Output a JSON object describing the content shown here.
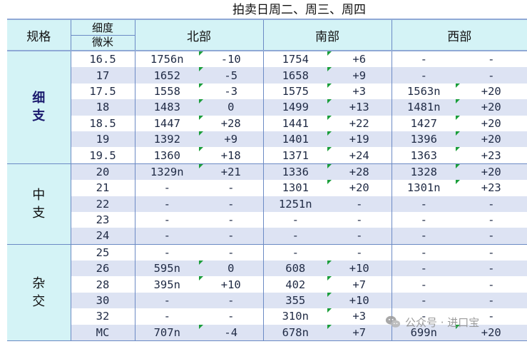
{
  "title": "拍卖日周二、周三、周四",
  "header": {
    "spec": "规格",
    "micron_top": "细度",
    "micron_bottom": "微米",
    "regions": [
      "北部",
      "南部",
      "西部"
    ]
  },
  "groups": [
    {
      "label_chars": [
        "细",
        "支"
      ],
      "bold": true,
      "rows": [
        {
          "micron": "16.5",
          "cells": [
            "1756n",
            "-10",
            "1754",
            "+6",
            "-",
            "-"
          ]
        },
        {
          "micron": "17",
          "cells": [
            "1652",
            "-5",
            "1658",
            "+9",
            "-",
            "-"
          ]
        },
        {
          "micron": "17.5",
          "cells": [
            "1558",
            "-3",
            "1575",
            "+3",
            "1563n",
            "+20"
          ]
        },
        {
          "micron": "18",
          "cells": [
            "1483",
            "0",
            "1499",
            "+13",
            "1481n",
            "+20"
          ]
        },
        {
          "micron": "18.5",
          "cells": [
            "1447",
            "+28",
            "1441",
            "+22",
            "1427",
            "+20"
          ]
        },
        {
          "micron": "19",
          "cells": [
            "1392",
            "+9",
            "1401",
            "+19",
            "1396",
            "+20"
          ]
        },
        {
          "micron": "19.5",
          "cells": [
            "1360",
            "+18",
            "1371",
            "+24",
            "1363",
            "+23"
          ]
        }
      ]
    },
    {
      "label_chars": [
        "中",
        "支"
      ],
      "bold": false,
      "rows": [
        {
          "micron": "20",
          "cells": [
            "1329n",
            "+21",
            "1336",
            "+28",
            "1328",
            "+20"
          ]
        },
        {
          "micron": "21",
          "cells": [
            "-",
            "-",
            "1301",
            "+20",
            "1301n",
            "+23"
          ]
        },
        {
          "micron": "22",
          "cells": [
            "-",
            "-",
            "1251n",
            "-",
            "-",
            "-"
          ]
        },
        {
          "micron": "23",
          "cells": [
            "-",
            "-",
            "-",
            "-",
            "-",
            "-"
          ]
        },
        {
          "micron": "24",
          "cells": [
            "-",
            "-",
            "-",
            "-",
            "-",
            "-"
          ]
        }
      ]
    },
    {
      "label_chars": [
        "杂",
        "交"
      ],
      "bold": false,
      "rows": [
        {
          "micron": "25",
          "cells": [
            "-",
            "-",
            "-",
            "-",
            "-",
            "-"
          ]
        },
        {
          "micron": "26",
          "cells": [
            "595n",
            "0",
            "608",
            "+10",
            "-",
            "-"
          ]
        },
        {
          "micron": "28",
          "cells": [
            "395n",
            "+10",
            "402",
            "+7",
            "-",
            "-"
          ]
        },
        {
          "micron": "30",
          "cells": [
            "-",
            "-",
            "355",
            "+10",
            "-",
            "-"
          ]
        },
        {
          "micron": "32",
          "cells": [
            "-",
            "-",
            "310n",
            "+3",
            "-",
            "-"
          ]
        },
        {
          "micron": "MC",
          "cells": [
            "707n",
            "-4",
            "678n",
            "+7",
            "699n",
            "+20"
          ]
        }
      ]
    }
  ],
  "watermark": {
    "text": "公众号 · 进口宝",
    "icon": "wechat-icon"
  },
  "colors": {
    "header_bg": "#d4f3f6",
    "band": "#dde3f3",
    "grid": "#6b8ac4",
    "marker": "#1a9e3a"
  }
}
